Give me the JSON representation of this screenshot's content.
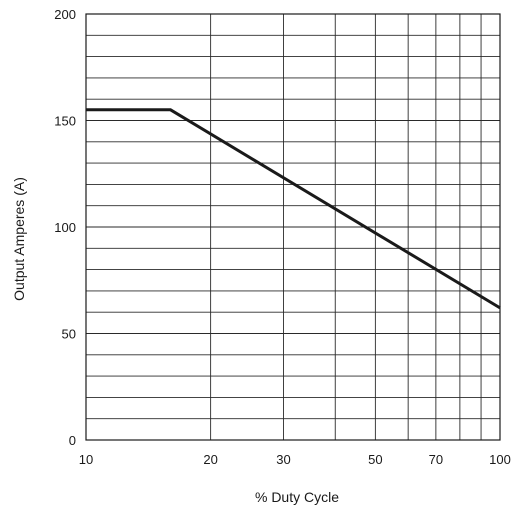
{
  "chart_data": {
    "type": "line",
    "title": "",
    "xlabel": "% Duty Cycle",
    "ylabel": "Output Amperes (A)",
    "x_scale": "log",
    "xlim": [
      10,
      100
    ],
    "ylim": [
      0,
      200
    ],
    "x_tick_labels": [
      "10",
      "20",
      "30",
      "50",
      "70",
      "100"
    ],
    "x_ticks": [
      10,
      20,
      30,
      50,
      70,
      100
    ],
    "x_gridlines": [
      10,
      20,
      30,
      40,
      50,
      60,
      70,
      80,
      90,
      100
    ],
    "y_tick_labels": [
      "0",
      "50",
      "100",
      "150",
      "200"
    ],
    "y_ticks": [
      0,
      50,
      100,
      150,
      200
    ],
    "y_gridlines": [
      0,
      10,
      20,
      30,
      40,
      50,
      60,
      70,
      80,
      90,
      100,
      110,
      120,
      130,
      140,
      150,
      160,
      170,
      180,
      190,
      200
    ],
    "grid": true,
    "legend": "none",
    "line_color": "#1a1a1a",
    "series": [
      {
        "x": [
          10,
          16,
          100
        ],
        "y": [
          155,
          155,
          62
        ]
      }
    ]
  }
}
